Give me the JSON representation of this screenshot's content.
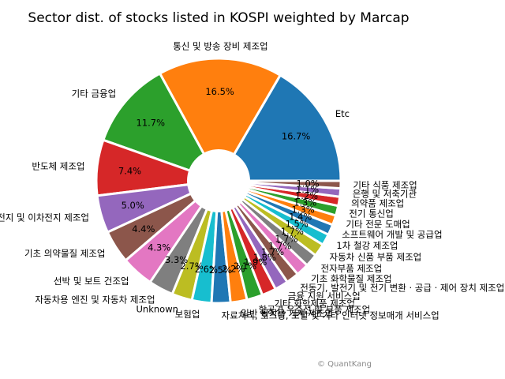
{
  "chart_data": {
    "type": "pie",
    "title": "Sector dist. of stocks listed in KOSPI weighted by Marcap",
    "credit": "© QuantKang",
    "slices": [
      {
        "label": "Etc",
        "value": 16.7,
        "pct_label": "16.7%",
        "color": "#1f77b4"
      },
      {
        "label": "통신 및 방송 장비 제조업",
        "value": 16.5,
        "pct_label": "16.5%",
        "color": "#ff7f0e"
      },
      {
        "label": "기타 금융업",
        "value": 11.7,
        "pct_label": "11.7%",
        "color": "#2ca02c"
      },
      {
        "label": "반도체 제조업",
        "value": 7.4,
        "pct_label": "7.4%",
        "color": "#d62728"
      },
      {
        "label": "일차전지 및 이차전지 제조업",
        "value": 5.0,
        "pct_label": "5.0%",
        "color": "#9467bd"
      },
      {
        "label": "기초 의약물질 제조업",
        "value": 4.4,
        "pct_label": "4.4%",
        "color": "#8c564b"
      },
      {
        "label": "선박 및 보트 건조업",
        "value": 4.3,
        "pct_label": "4.3%",
        "color": "#e377c2"
      },
      {
        "label": "자동차용 엔진 및 자동차 제조업",
        "value": 3.3,
        "pct_label": "3.3%",
        "color": "#7f7f7f"
      },
      {
        "label": "Unknown",
        "value": 2.7,
        "pct_label": "2.7%",
        "color": "#bcbd22"
      },
      {
        "label": "보험업",
        "value": 2.6,
        "pct_label": "2.6%",
        "color": "#17becf"
      },
      {
        "label": "자료처리, 호스팅, 포털 및 기타 인터넷 정보매개 서비스업",
        "value": 2.5,
        "pct_label": "2.5%",
        "color": "#1f77b4"
      },
      {
        "label": "일반 목적용 기계 제조업",
        "value": 2.2,
        "pct_label": "2.2%",
        "color": "#ff7f0e"
      },
      {
        "label": "항공기,우주선 및 부품 제조업",
        "value": 2.1,
        "pct_label": "2.1%",
        "color": "#2ca02c"
      },
      {
        "label": "기타 화학제품 제조업",
        "value": 1.9,
        "pct_label": "1.9%",
        "color": "#d62728"
      },
      {
        "label": "금융 지원 서비스업",
        "value": 1.8,
        "pct_label": "1.8%",
        "color": "#9467bd"
      },
      {
        "label": "전동기, 발전기 및 전기 변환 · 공급 · 제어 장치 제조업",
        "value": 1.7,
        "pct_label": "1.7%",
        "color": "#8c564b"
      },
      {
        "label": "기초 화학물질 제조업",
        "value": 1.7,
        "pct_label": "1.7%",
        "color": "#e377c2"
      },
      {
        "label": "전자부품 제조업",
        "value": 1.7,
        "pct_label": "1.7%",
        "color": "#7f7f7f"
      },
      {
        "label": "자동차 신품 부품 제조업",
        "value": 1.7,
        "pct_label": "1.7%",
        "color": "#bcbd22"
      },
      {
        "label": "1차 철강 제조업",
        "value": 1.5,
        "pct_label": "1.5%",
        "color": "#17becf"
      },
      {
        "label": "소프트웨어 개발 및 공급업",
        "value": 1.4,
        "pct_label": "1.4%",
        "color": "#1f77b4"
      },
      {
        "label": "기타 전문 도매업",
        "value": 1.3,
        "pct_label": "1.3%",
        "color": "#ff7f0e"
      },
      {
        "label": "전기 통신업",
        "value": 1.3,
        "pct_label": "1.3%",
        "color": "#2ca02c"
      },
      {
        "label": "의약품 제조업",
        "value": 1.2,
        "pct_label": "1.2%",
        "color": "#d62728"
      },
      {
        "label": "은행 및 저축기관",
        "value": 1.1,
        "pct_label": "1.1%",
        "color": "#9467bd"
      },
      {
        "label": "기타 식품 제조업",
        "value": 1.0,
        "pct_label": "1.0%",
        "color": "#8c564b"
      }
    ]
  }
}
